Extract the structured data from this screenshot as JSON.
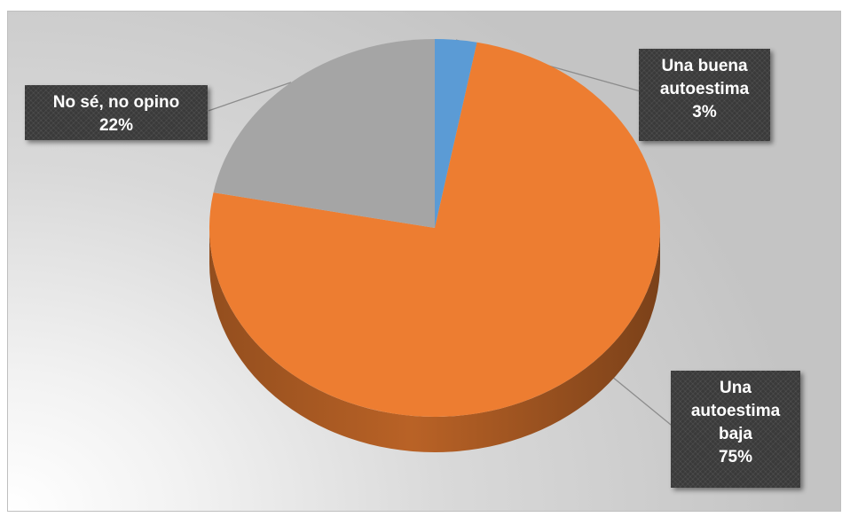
{
  "chart_data": {
    "type": "pie",
    "title": "",
    "slices": [
      {
        "label_lines": [
          "Una buena",
          "autoestima"
        ],
        "value": 3,
        "percent_label": "3%",
        "color": "#5B9BD5"
      },
      {
        "label_lines": [
          "Una",
          "autoestima",
          "baja"
        ],
        "value": 75,
        "percent_label": "75%",
        "color": "#ED7D31"
      },
      {
        "label_lines": [
          "No sé, no opino"
        ],
        "value": 22,
        "percent_label": "22%",
        "color": "#A5A5A5"
      }
    ],
    "style": "3d",
    "legend": "none",
    "data_labels": "callout"
  }
}
